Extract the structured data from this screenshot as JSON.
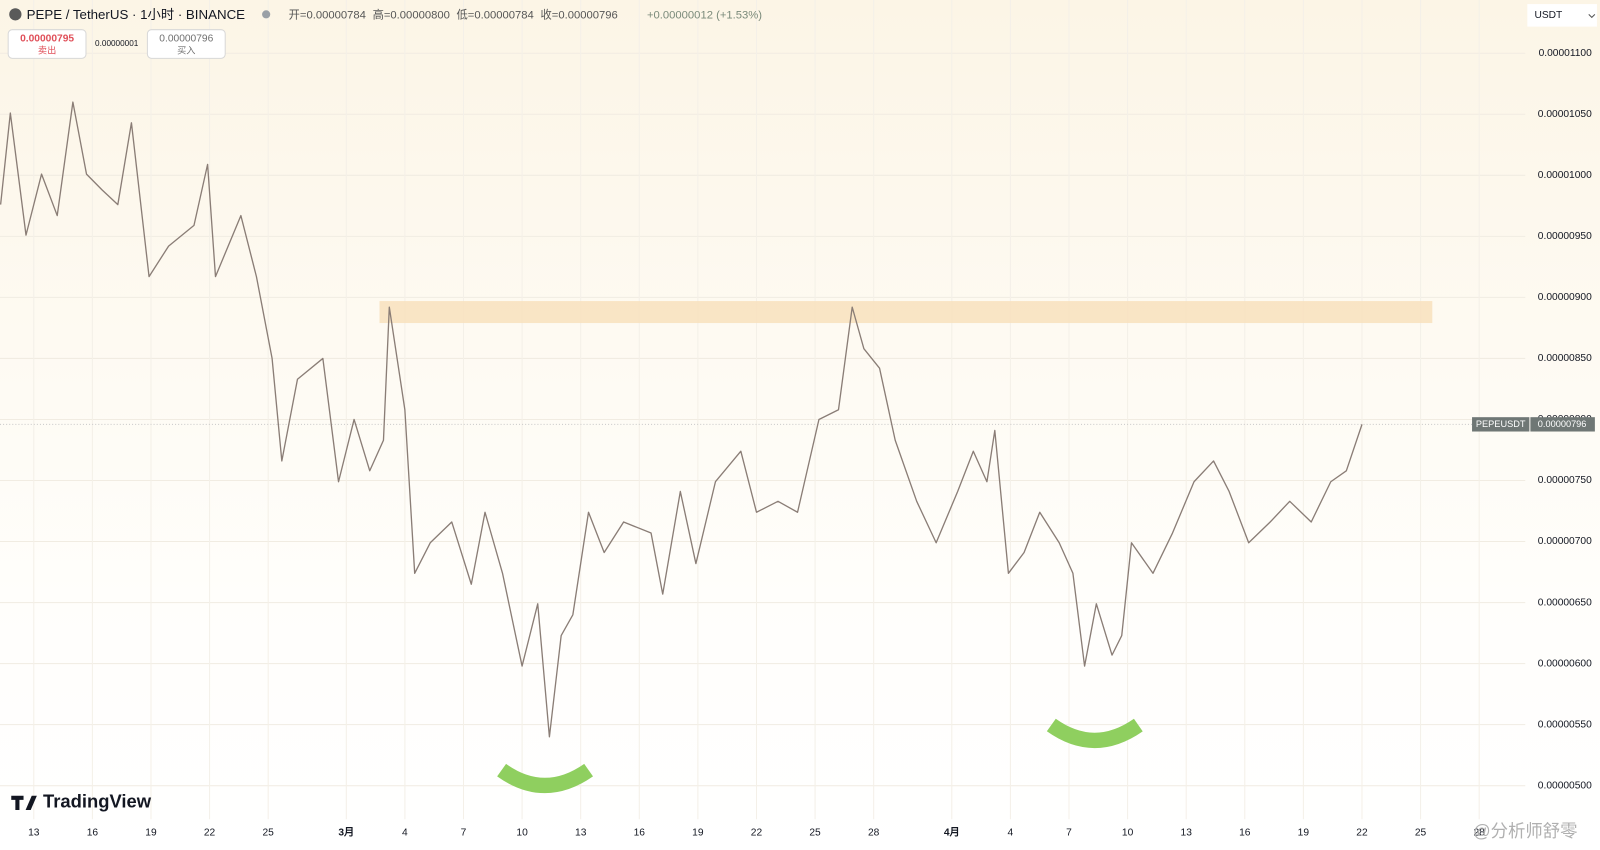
{
  "chart_data": {
    "type": "line",
    "header": {
      "symbol": "PEPE / TetherUS · 1小时 · BINANCE",
      "ohlc": [
        "开=0.00000784",
        "高=0.00000800",
        "低=0.00000784",
        "收=0.00000796"
      ],
      "change": "+0.00000012 (+1.53%)"
    },
    "trade": {
      "sell_price": "0.00000795",
      "sell_label": "卖出",
      "spread": "0.00000001",
      "buy_price": "0.00000796",
      "buy_label": "买入"
    },
    "currency": "USDT",
    "brand": "TradingView",
    "watermark": "@分析师舒零",
    "line_color": "#8a7d76",
    "grid": true,
    "x": [
      11.3,
      11.8,
      12.6,
      13.4,
      14.2,
      15.0,
      15.7,
      16.5,
      17.3,
      18.0,
      18.9,
      19.9,
      21.2,
      21.9,
      22.3,
      23.6,
      24.4,
      25.2,
      25.7,
      26.5,
      27.8,
      28.6,
      29.4,
      30.2,
      30.9,
      31.2,
      32.0,
      32.5,
      33.3,
      34.4,
      35.4,
      36.1,
      37.0,
      38.0,
      38.8,
      39.4,
      40.0,
      40.6,
      41.4,
      42.2,
      43.2,
      44.6,
      45.2,
      46.1,
      46.9,
      47.9,
      49.2,
      50.0,
      51.1,
      52.1,
      53.2,
      54.2,
      54.9,
      55.5,
      56.3,
      57.1,
      58.2,
      59.2,
      60.3,
      61.1,
      61.8,
      62.2,
      62.9,
      63.7,
      64.5,
      65.5,
      66.2,
      66.8,
      67.4,
      68.2,
      68.7,
      69.2,
      70.3,
      71.3,
      72.4,
      73.4,
      74.2,
      75.2,
      76.3,
      77.3,
      78.4,
      79.4,
      80.2,
      81.0
    ],
    "values": [
      9.76e-06,
      1.051e-05,
      9.51e-06,
      1.001e-05,
      9.67e-06,
      1.06e-05,
      1.001e-05,
      9.88e-06,
      9.76e-06,
      1.043e-05,
      9.17e-06,
      9.42e-06,
      9.59e-06,
      1.009e-05,
      9.17e-06,
      9.67e-06,
      9.17e-06,
      8.5e-06,
      7.66e-06,
      8.33e-06,
      8.5e-06,
      7.49e-06,
      8e-06,
      7.58e-06,
      7.83e-06,
      8.92e-06,
      8.08e-06,
      6.74e-06,
      6.99e-06,
      7.16e-06,
      6.65e-06,
      7.24e-06,
      6.74e-06,
      5.98e-06,
      6.49e-06,
      5.4e-06,
      6.23e-06,
      6.4e-06,
      7.24e-06,
      6.91e-06,
      7.16e-06,
      7.07e-06,
      6.57e-06,
      7.41e-06,
      6.82e-06,
      7.49e-06,
      7.74e-06,
      7.24e-06,
      7.33e-06,
      7.24e-06,
      8e-06,
      8.08e-06,
      8.92e-06,
      8.58e-06,
      8.42e-06,
      7.83e-06,
      7.33e-06,
      6.99e-06,
      7.41e-06,
      7.74e-06,
      7.49e-06,
      7.91e-06,
      6.74e-06,
      6.91e-06,
      7.24e-06,
      6.99e-06,
      6.74e-06,
      5.98e-06,
      6.49e-06,
      6.07e-06,
      6.23e-06,
      6.99e-06,
      6.74e-06,
      7.07e-06,
      7.49e-06,
      7.66e-06,
      7.41e-06,
      6.99e-06,
      7.16e-06,
      7.33e-06,
      7.16e-06,
      7.49e-06,
      7.58e-06,
      7.96e-06
    ],
    "xlim": [
      11.27,
      89.36
    ],
    "xticks": [
      13,
      16,
      19,
      22,
      25,
      {
        "value": 29,
        "label": "3月"
      },
      {
        "value": 32,
        "label": "4"
      },
      {
        "value": 35,
        "label": "7"
      },
      {
        "value": 38,
        "label": "10"
      },
      {
        "value": 41,
        "label": "13"
      },
      {
        "value": 44,
        "label": "16"
      },
      {
        "value": 47,
        "label": "19"
      },
      {
        "value": 50,
        "label": "22"
      },
      {
        "value": 53,
        "label": "25"
      },
      {
        "value": 56,
        "label": "28"
      },
      {
        "value": 60,
        "label": "4月"
      },
      {
        "value": 63,
        "label": "4"
      },
      {
        "value": 66,
        "label": "7"
      },
      {
        "value": 69,
        "label": "10"
      },
      {
        "value": 72,
        "label": "13"
      },
      {
        "value": 75,
        "label": "16"
      },
      {
        "value": 78,
        "label": "19"
      },
      {
        "value": 81,
        "label": "22"
      },
      {
        "value": 84,
        "label": "25"
      },
      {
        "value": 87,
        "label": "28"
      }
    ],
    "ylim": [
      4.725e-06,
      1.1436e-05
    ],
    "yticks": [
      {
        "value": 5e-06,
        "label": "0.00000500"
      },
      {
        "value": 5.5e-06,
        "label": "0.00000550"
      },
      {
        "value": 6e-06,
        "label": "0.00000600"
      },
      {
        "value": 6.5e-06,
        "label": "0.00000650"
      },
      {
        "value": 7e-06,
        "label": "0.00000700"
      },
      {
        "value": 7.5e-06,
        "label": "0.00000750"
      },
      {
        "value": 8e-06,
        "label": "0.00000800"
      },
      {
        "value": 8.5e-06,
        "label": "0.00000850"
      },
      {
        "value": 9e-06,
        "label": "0.00000900"
      },
      {
        "value": 9.5e-06,
        "label": "0.00000950"
      },
      {
        "value": 1e-05,
        "label": "0.00001000"
      },
      {
        "value": 1.05e-05,
        "label": "0.00001050"
      },
      {
        "value": 1.1e-05,
        "label": "0.00001100"
      }
    ],
    "price_label": {
      "name": "PEPEUSDT",
      "value": 7.96e-06,
      "label": "0.00000796"
    },
    "zone": {
      "x": [
        30.7,
        84.6
      ],
      "y": [
        8.79e-06,
        8.97e-06
      ],
      "color": "#f8e0bd"
    }
  }
}
